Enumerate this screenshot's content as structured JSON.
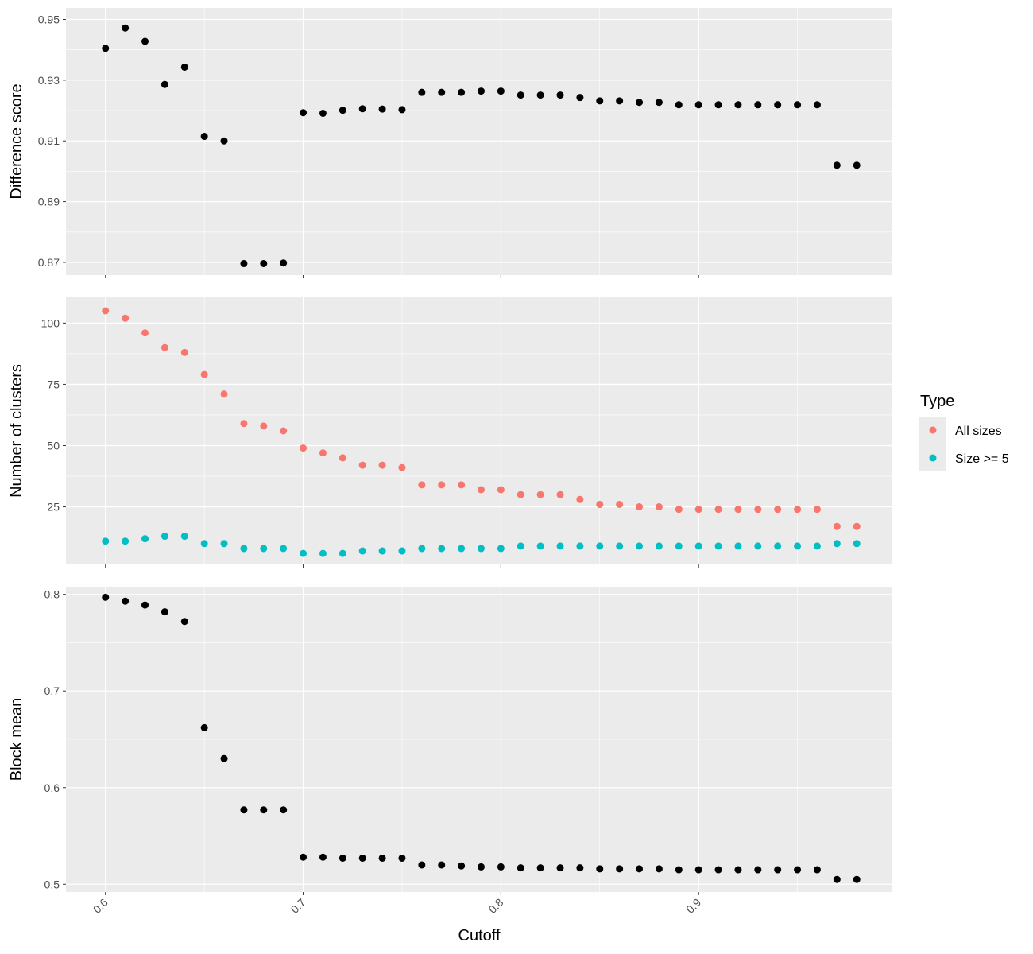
{
  "chart_data": {
    "type": "scatter",
    "xlabel": "Cutoff",
    "x_ticks": [
      "0.6",
      "0.7",
      "0.8",
      "0.9"
    ],
    "x_tick_values": [
      0.6,
      0.7,
      0.8,
      0.9
    ],
    "xlim": [
      0.58,
      0.998
    ],
    "legend": {
      "title": "Type",
      "position": "right",
      "entries": [
        {
          "name": "All sizes",
          "color": "#F8766D"
        },
        {
          "name": "Size >= 5",
          "color": "#00BFC4"
        }
      ]
    },
    "panels": [
      {
        "id": "difference",
        "ylabel": "Difference score",
        "ylim": [
          0.8658,
          0.9538
        ],
        "y_ticks": [
          "0.87",
          "0.89",
          "0.91",
          "0.93",
          "0.95"
        ],
        "y_tick_values": [
          0.87,
          0.89,
          0.91,
          0.93,
          0.95
        ],
        "series": [
          {
            "color": "#000000",
            "x": [
              0.6,
              0.61,
              0.62,
              0.63,
              0.64,
              0.65,
              0.66,
              0.67,
              0.68,
              0.69,
              0.7,
              0.71,
              0.72,
              0.73,
              0.74,
              0.75,
              0.76,
              0.77,
              0.78,
              0.79,
              0.8,
              0.81,
              0.82,
              0.83,
              0.84,
              0.85,
              0.86,
              0.87,
              0.88,
              0.89,
              0.9,
              0.91,
              0.92,
              0.93,
              0.94,
              0.95,
              0.96,
              0.97,
              0.98
            ],
            "y": [
              0.9405,
              0.9472,
              0.9428,
              0.9286,
              0.9343,
              0.9115,
              0.91,
              0.8696,
              0.8696,
              0.8698,
              0.9193,
              0.9191,
              0.9201,
              0.9206,
              0.9205,
              0.9203,
              0.926,
              0.926,
              0.926,
              0.9264,
              0.9264,
              0.9251,
              0.9251,
              0.9251,
              0.9243,
              0.9232,
              0.9232,
              0.9227,
              0.9227,
              0.9219,
              0.9219,
              0.9219,
              0.9219,
              0.9219,
              0.9219,
              0.9219,
              0.9219,
              0.902,
              0.902
            ]
          }
        ]
      },
      {
        "id": "clusters",
        "ylabel": "Number of clusters",
        "ylim": [
          1.5,
          110.5
        ],
        "y_ticks": [
          "25",
          "50",
          "75",
          "100"
        ],
        "y_tick_values": [
          25,
          50,
          75,
          100
        ],
        "series": [
          {
            "name": "All sizes",
            "color": "#F8766D",
            "x": [
              0.6,
              0.61,
              0.62,
              0.63,
              0.64,
              0.65,
              0.66,
              0.67,
              0.68,
              0.69,
              0.7,
              0.71,
              0.72,
              0.73,
              0.74,
              0.75,
              0.76,
              0.77,
              0.78,
              0.79,
              0.8,
              0.81,
              0.82,
              0.83,
              0.84,
              0.85,
              0.86,
              0.87,
              0.88,
              0.89,
              0.9,
              0.91,
              0.92,
              0.93,
              0.94,
              0.95,
              0.96,
              0.97,
              0.98
            ],
            "y": [
              105,
              102,
              96,
              90,
              88,
              79,
              71,
              59,
              58,
              56,
              49,
              47,
              45,
              42,
              42,
              41,
              34,
              34,
              34,
              32,
              32,
              30,
              30,
              30,
              28,
              26,
              26,
              25,
              25,
              24,
              24,
              24,
              24,
              24,
              24,
              24,
              24,
              17,
              17
            ]
          },
          {
            "name": "Size >= 5",
            "color": "#00BFC4",
            "x": [
              0.6,
              0.61,
              0.62,
              0.63,
              0.64,
              0.65,
              0.66,
              0.67,
              0.68,
              0.69,
              0.7,
              0.71,
              0.72,
              0.73,
              0.74,
              0.75,
              0.76,
              0.77,
              0.78,
              0.79,
              0.8,
              0.81,
              0.82,
              0.83,
              0.84,
              0.85,
              0.86,
              0.87,
              0.88,
              0.89,
              0.9,
              0.91,
              0.92,
              0.93,
              0.94,
              0.95,
              0.96,
              0.97,
              0.98
            ],
            "y": [
              11,
              11,
              12,
              13,
              13,
              10,
              10,
              8,
              8,
              8,
              6,
              6,
              6,
              7,
              7,
              7,
              8,
              8,
              8,
              8,
              8,
              9,
              9,
              9,
              9,
              9,
              9,
              9,
              9,
              9,
              9,
              9,
              9,
              9,
              9,
              9,
              9,
              10,
              10
            ]
          }
        ]
      },
      {
        "id": "blockmean",
        "ylabel": "Block mean",
        "ylim": [
          0.492,
          0.808
        ],
        "y_ticks": [
          "0.5",
          "0.6",
          "0.7",
          "0.8"
        ],
        "y_tick_values": [
          0.5,
          0.6,
          0.7,
          0.8
        ],
        "series": [
          {
            "color": "#000000",
            "x": [
              0.6,
              0.61,
              0.62,
              0.63,
              0.64,
              0.65,
              0.66,
              0.67,
              0.68,
              0.69,
              0.7,
              0.71,
              0.72,
              0.73,
              0.74,
              0.75,
              0.76,
              0.77,
              0.78,
              0.79,
              0.8,
              0.81,
              0.82,
              0.83,
              0.84,
              0.85,
              0.86,
              0.87,
              0.88,
              0.89,
              0.9,
              0.91,
              0.92,
              0.93,
              0.94,
              0.95,
              0.96,
              0.97,
              0.98
            ],
            "y": [
              0.797,
              0.793,
              0.789,
              0.782,
              0.772,
              0.662,
              0.63,
              0.577,
              0.577,
              0.577,
              0.528,
              0.528,
              0.527,
              0.527,
              0.527,
              0.527,
              0.52,
              0.52,
              0.519,
              0.518,
              0.518,
              0.517,
              0.517,
              0.517,
              0.517,
              0.516,
              0.516,
              0.516,
              0.516,
              0.515,
              0.515,
              0.515,
              0.515,
              0.515,
              0.515,
              0.515,
              0.515,
              0.505,
              0.505
            ]
          }
        ]
      }
    ]
  }
}
